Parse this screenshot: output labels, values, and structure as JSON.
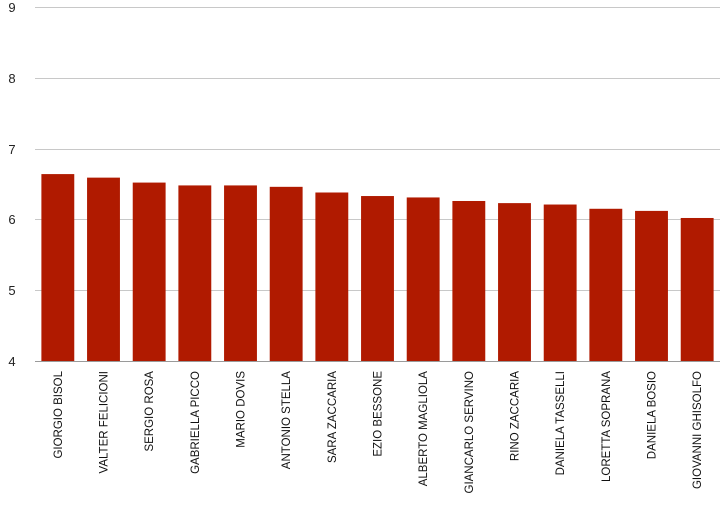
{
  "chart_data": {
    "type": "bar",
    "title": "",
    "xlabel": "",
    "ylabel": "",
    "ylim": [
      4,
      9
    ],
    "yticks": [
      4,
      5,
      6,
      7,
      8,
      9
    ],
    "grid": true,
    "legend": "none",
    "bar_color": "#B01A00",
    "categories": [
      "GIORGIO BISOL",
      "VALTER FELICIONI",
      "SERGIO ROSA",
      "GABRIELLA PICCO",
      "MARIO DOVIS",
      "ANTONIO STELLA",
      "SARA ZACCARIA",
      "EZIO BESSONE",
      "ALBERTO MAGLIOLA",
      "GIANCARLO SERVINO",
      "RINO ZACCARIA",
      "DANIELA TASSELLI",
      "LORETTA SOPRANA",
      "DANIELA BOSIO",
      "GIOVANNI GHISOLFO"
    ],
    "values": [
      6.64,
      6.59,
      6.52,
      6.48,
      6.48,
      6.46,
      6.38,
      6.33,
      6.31,
      6.26,
      6.23,
      6.21,
      6.15,
      6.12,
      6.02
    ]
  }
}
